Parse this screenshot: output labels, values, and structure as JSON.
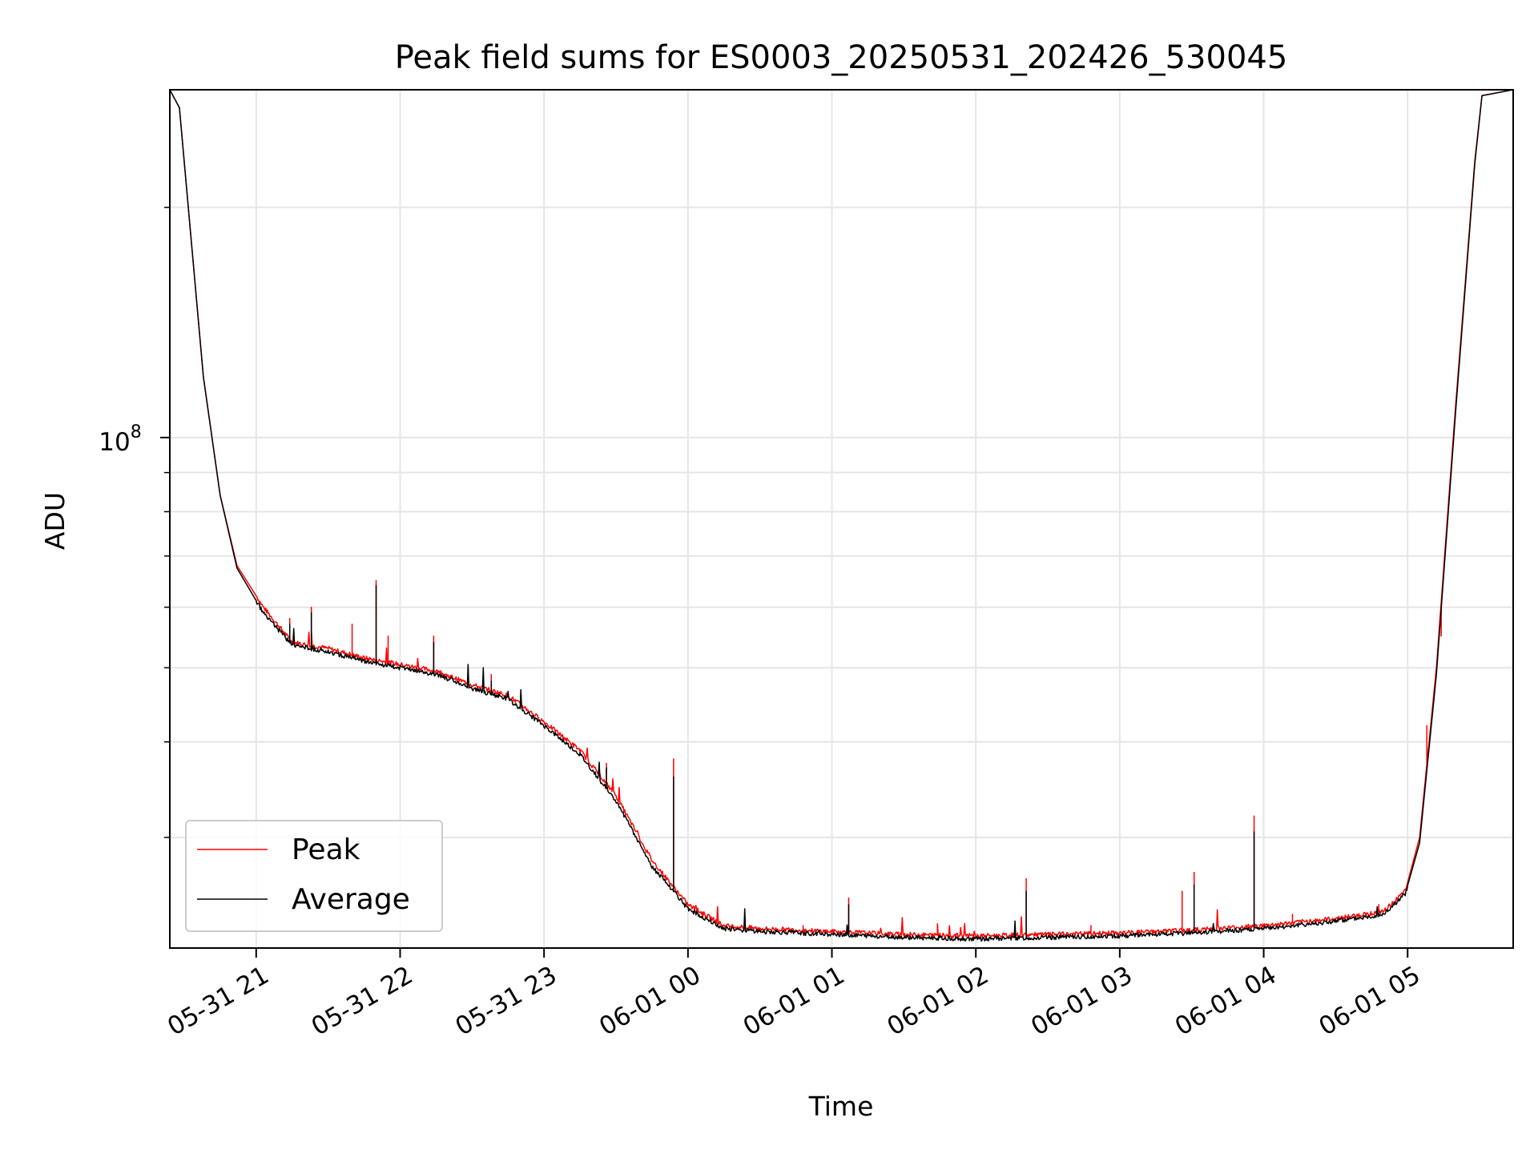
{
  "chart_data": {
    "type": "line",
    "title": "Peak field sums for ES0003_20250531_202426_530045",
    "xlabel": "Time",
    "ylabel": "ADU",
    "y_scale": "log",
    "grid": true,
    "legend_position": "lower-left",
    "xlim": [
      "2025-05-31 20:24",
      "2025-06-01 05:44"
    ],
    "ylim": [
      21500000,
      285000000
    ],
    "x_ticks": [
      {
        "t": "2025-05-31 21:00",
        "label": "05-31 21"
      },
      {
        "t": "2025-05-31 22:00",
        "label": "05-31 22"
      },
      {
        "t": "2025-05-31 23:00",
        "label": "05-31 23"
      },
      {
        "t": "2025-06-01 00:00",
        "label": "06-01 00"
      },
      {
        "t": "2025-06-01 01:00",
        "label": "06-01 01"
      },
      {
        "t": "2025-06-01 02:00",
        "label": "06-01 02"
      },
      {
        "t": "2025-06-01 03:00",
        "label": "06-01 03"
      },
      {
        "t": "2025-06-01 04:00",
        "label": "06-01 04"
      },
      {
        "t": "2025-06-01 05:00",
        "label": "06-01 05"
      }
    ],
    "y_major_ticks": [
      {
        "value": 100000000,
        "base": "10",
        "exp": "8"
      }
    ],
    "y_minor_ticks": [
      30000000,
      40000000,
      50000000,
      60000000,
      70000000,
      80000000,
      90000000,
      200000000
    ],
    "series": [
      {
        "name": "Peak",
        "color": "#ff0000",
        "baseline": [
          [
            "2025-05-31 20:24",
            285000000
          ],
          [
            "2025-05-31 20:28",
            270000000
          ],
          [
            "2025-05-31 20:33",
            180000000
          ],
          [
            "2025-05-31 20:38",
            120000000
          ],
          [
            "2025-05-31 20:45",
            84000000
          ],
          [
            "2025-05-31 20:52",
            68000000
          ],
          [
            "2025-05-31 21:03",
            60000000
          ],
          [
            "2025-05-31 21:15",
            54000000
          ],
          [
            "2025-05-31 21:30",
            53000000
          ],
          [
            "2025-05-31 21:45",
            51500000
          ],
          [
            "2025-05-31 22:00",
            50500000
          ],
          [
            "2025-05-31 22:15",
            49500000
          ],
          [
            "2025-05-31 22:30",
            47500000
          ],
          [
            "2025-05-31 22:45",
            46000000
          ],
          [
            "2025-05-31 23:00",
            42500000
          ],
          [
            "2025-05-31 23:15",
            39000000
          ],
          [
            "2025-05-31 23:30",
            34000000
          ],
          [
            "2025-05-31 23:45",
            28000000
          ],
          [
            "2025-06-01 00:00",
            24500000
          ],
          [
            "2025-06-01 00:15",
            23000000
          ],
          [
            "2025-06-01 00:30",
            22800000
          ],
          [
            "2025-06-01 01:00",
            22600000
          ],
          [
            "2025-06-01 01:30",
            22400000
          ],
          [
            "2025-06-01 02:00",
            22300000
          ],
          [
            "2025-06-01 02:30",
            22400000
          ],
          [
            "2025-06-01 03:00",
            22500000
          ],
          [
            "2025-06-01 03:30",
            22700000
          ],
          [
            "2025-06-01 04:00",
            23000000
          ],
          [
            "2025-06-01 04:30",
            23500000
          ],
          [
            "2025-06-01 04:50",
            24000000
          ],
          [
            "2025-06-01 04:59",
            25500000
          ],
          [
            "2025-06-01 05:05",
            30000000
          ],
          [
            "2025-06-01 05:12",
            50000000
          ],
          [
            "2025-06-01 05:20",
            110000000
          ],
          [
            "2025-06-01 05:28",
            230000000
          ],
          [
            "2025-06-01 05:31",
            280000000
          ],
          [
            "2025-06-01 05:44",
            285000000
          ]
        ],
        "spikes": [
          [
            "2025-05-31 21:14",
            58000000
          ],
          [
            "2025-05-31 21:23",
            60000000
          ],
          [
            "2025-05-31 21:40",
            57000000
          ],
          [
            "2025-05-31 21:50",
            65000000
          ],
          [
            "2025-05-31 21:55",
            55000000
          ],
          [
            "2025-05-31 22:14",
            55000000
          ],
          [
            "2025-05-31 22:38",
            49000000
          ],
          [
            "2025-05-31 22:48",
            45000000
          ],
          [
            "2025-05-31 23:23",
            37000000
          ],
          [
            "2025-05-31 23:26",
            37500000
          ],
          [
            "2025-05-31 23:54",
            38000000
          ],
          [
            "2025-06-01 00:08",
            23500000
          ],
          [
            "2025-06-01 00:48",
            23000000
          ],
          [
            "2025-06-01 01:07",
            25000000
          ],
          [
            "2025-06-01 01:44",
            23000000
          ],
          [
            "2025-06-01 02:21",
            26500000
          ],
          [
            "2025-06-01 02:48",
            23000000
          ],
          [
            "2025-06-01 03:26",
            25500000
          ],
          [
            "2025-06-01 03:31",
            27000000
          ],
          [
            "2025-06-01 03:56",
            32000000
          ],
          [
            "2025-06-01 04:12",
            23800000
          ],
          [
            "2025-06-01 04:48",
            24500000
          ],
          [
            "2025-06-01 05:08",
            42000000
          ],
          [
            "2025-06-01 05:14",
            55000000
          ]
        ]
      },
      {
        "name": "Average",
        "color": "#000000",
        "baseline": [
          [
            "2025-05-31 20:24",
            285000000
          ],
          [
            "2025-05-31 20:28",
            270000000
          ],
          [
            "2025-05-31 20:33",
            180000000
          ],
          [
            "2025-05-31 20:38",
            120000000
          ],
          [
            "2025-05-31 20:45",
            84000000
          ],
          [
            "2025-05-31 20:52",
            67500000
          ],
          [
            "2025-05-31 21:03",
            59000000
          ],
          [
            "2025-05-31 21:15",
            53500000
          ],
          [
            "2025-05-31 21:30",
            52500000
          ],
          [
            "2025-05-31 21:45",
            51000000
          ],
          [
            "2025-05-31 22:00",
            50000000
          ],
          [
            "2025-05-31 22:15",
            49000000
          ],
          [
            "2025-05-31 22:30",
            47000000
          ],
          [
            "2025-05-31 22:45",
            45500000
          ],
          [
            "2025-05-31 23:00",
            42000000
          ],
          [
            "2025-05-31 23:15",
            38500000
          ],
          [
            "2025-05-31 23:30",
            33500000
          ],
          [
            "2025-05-31 23:45",
            27500000
          ],
          [
            "2025-06-01 00:00",
            24200000
          ],
          [
            "2025-06-01 00:15",
            22800000
          ],
          [
            "2025-06-01 00:30",
            22600000
          ],
          [
            "2025-06-01 01:00",
            22400000
          ],
          [
            "2025-06-01 01:30",
            22200000
          ],
          [
            "2025-06-01 02:00",
            22100000
          ],
          [
            "2025-06-01 02:30",
            22200000
          ],
          [
            "2025-06-01 03:00",
            22300000
          ],
          [
            "2025-06-01 03:30",
            22500000
          ],
          [
            "2025-06-01 04:00",
            22800000
          ],
          [
            "2025-06-01 04:30",
            23300000
          ],
          [
            "2025-06-01 04:50",
            23800000
          ],
          [
            "2025-06-01 04:59",
            25300000
          ],
          [
            "2025-06-01 05:05",
            29500000
          ],
          [
            "2025-06-01 05:12",
            49000000
          ],
          [
            "2025-06-01 05:20",
            108000000
          ],
          [
            "2025-06-01 05:28",
            228000000
          ],
          [
            "2025-06-01 05:31",
            280000000
          ],
          [
            "2025-06-01 05:44",
            285000000
          ]
        ],
        "spikes": [
          [
            "2025-05-31 21:14",
            57000000
          ],
          [
            "2025-05-31 21:23",
            59000000
          ],
          [
            "2025-05-31 21:50",
            64000000
          ],
          [
            "2025-05-31 22:14",
            54000000
          ],
          [
            "2025-05-31 22:38",
            48000000
          ],
          [
            "2025-05-31 23:26",
            37000000
          ],
          [
            "2025-05-31 23:54",
            36000000
          ],
          [
            "2025-06-01 01:07",
            24500000
          ],
          [
            "2025-06-01 02:21",
            25500000
          ],
          [
            "2025-06-01 03:31",
            26000000
          ],
          [
            "2025-06-01 03:56",
            30500000
          ]
        ]
      }
    ]
  }
}
